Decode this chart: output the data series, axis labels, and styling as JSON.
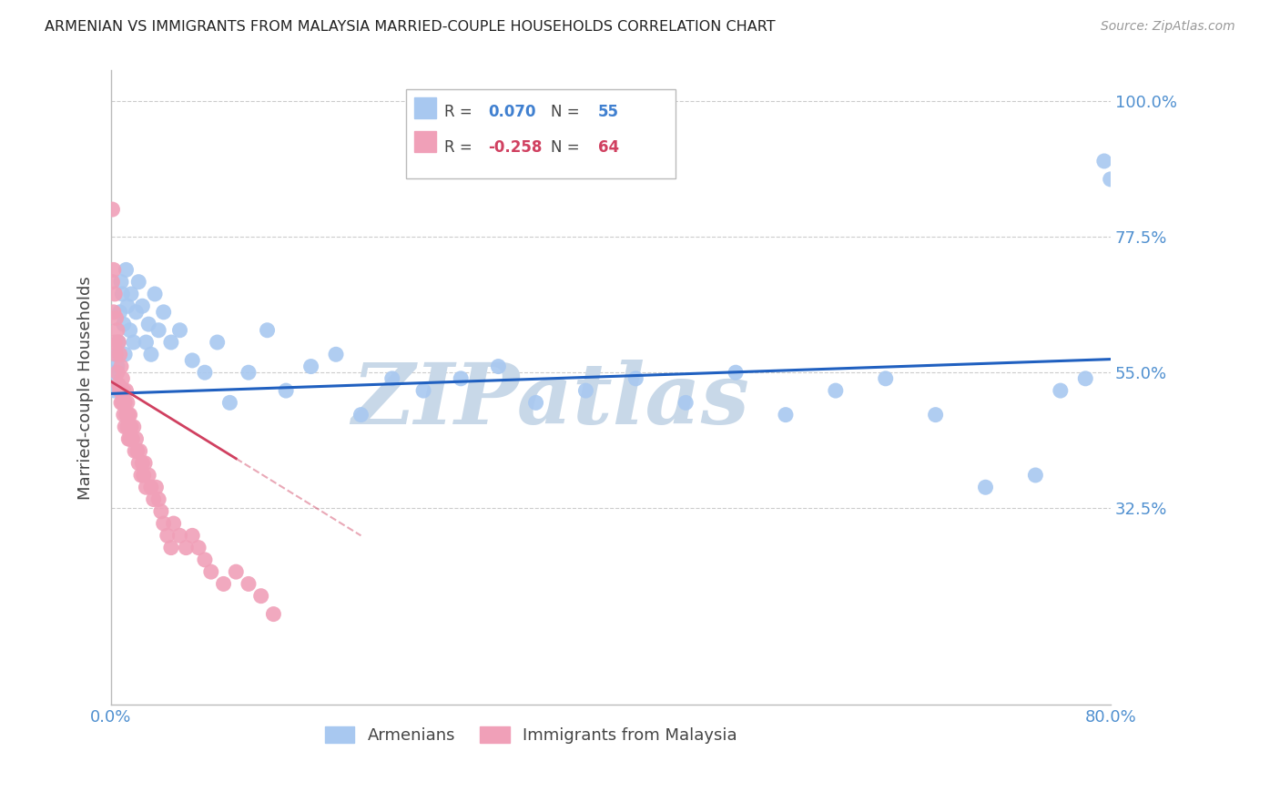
{
  "title": "ARMENIAN VS IMMIGRANTS FROM MALAYSIA MARRIED-COUPLE HOUSEHOLDS CORRELATION CHART",
  "source": "Source: ZipAtlas.com",
  "ylabel": "Married-couple Households",
  "ytick_labels": [
    "100.0%",
    "77.5%",
    "55.0%",
    "32.5%"
  ],
  "ytick_values": [
    1.0,
    0.775,
    0.55,
    0.325
  ],
  "xmin": 0.0,
  "xmax": 0.8,
  "ymin": 0.0,
  "ymax": 1.05,
  "r_armenian": "0.070",
  "n_armenian": "55",
  "r_malaysia": "-0.258",
  "n_malaysia": "64",
  "blue_color": "#a8c8f0",
  "pink_color": "#f0a0b8",
  "trend_blue": "#2060c0",
  "trend_pink": "#d04060",
  "watermark": "ZIPatlas",
  "watermark_color": "#c8d8e8",
  "legend_label_blue": "Armenians",
  "legend_label_pink": "Immigrants from Malaysia",
  "blue_r_color": "#4080d0",
  "pink_r_color": "#d04060",
  "armenian_x": [
    0.002,
    0.003,
    0.004,
    0.005,
    0.006,
    0.007,
    0.008,
    0.009,
    0.01,
    0.011,
    0.012,
    0.013,
    0.015,
    0.016,
    0.018,
    0.02,
    0.022,
    0.025,
    0.028,
    0.03,
    0.032,
    0.035,
    0.038,
    0.042,
    0.048,
    0.055,
    0.065,
    0.075,
    0.085,
    0.095,
    0.11,
    0.125,
    0.14,
    0.16,
    0.18,
    0.2,
    0.225,
    0.25,
    0.28,
    0.31,
    0.34,
    0.38,
    0.42,
    0.46,
    0.5,
    0.54,
    0.58,
    0.62,
    0.66,
    0.7,
    0.74,
    0.76,
    0.78,
    0.795,
    0.8
  ],
  "armenian_y": [
    0.55,
    0.52,
    0.58,
    0.56,
    0.6,
    0.65,
    0.7,
    0.68,
    0.63,
    0.58,
    0.72,
    0.66,
    0.62,
    0.68,
    0.6,
    0.65,
    0.7,
    0.66,
    0.6,
    0.63,
    0.58,
    0.68,
    0.62,
    0.65,
    0.6,
    0.62,
    0.57,
    0.55,
    0.6,
    0.5,
    0.55,
    0.62,
    0.52,
    0.56,
    0.58,
    0.48,
    0.54,
    0.52,
    0.54,
    0.56,
    0.5,
    0.52,
    0.54,
    0.5,
    0.55,
    0.48,
    0.52,
    0.54,
    0.48,
    0.36,
    0.38,
    0.52,
    0.54,
    0.9,
    0.87
  ],
  "malaysia_x": [
    0.001,
    0.001,
    0.002,
    0.002,
    0.003,
    0.003,
    0.004,
    0.004,
    0.005,
    0.005,
    0.006,
    0.006,
    0.007,
    0.007,
    0.008,
    0.008,
    0.009,
    0.009,
    0.01,
    0.01,
    0.011,
    0.011,
    0.012,
    0.012,
    0.013,
    0.013,
    0.014,
    0.014,
    0.015,
    0.015,
    0.016,
    0.017,
    0.018,
    0.019,
    0.02,
    0.021,
    0.022,
    0.023,
    0.024,
    0.025,
    0.026,
    0.027,
    0.028,
    0.03,
    0.032,
    0.034,
    0.036,
    0.038,
    0.04,
    0.042,
    0.045,
    0.048,
    0.05,
    0.055,
    0.06,
    0.065,
    0.07,
    0.075,
    0.08,
    0.09,
    0.1,
    0.11,
    0.12,
    0.13
  ],
  "malaysia_y": [
    0.82,
    0.7,
    0.72,
    0.65,
    0.68,
    0.6,
    0.64,
    0.58,
    0.62,
    0.55,
    0.6,
    0.53,
    0.58,
    0.52,
    0.56,
    0.5,
    0.54,
    0.5,
    0.52,
    0.48,
    0.5,
    0.46,
    0.52,
    0.48,
    0.5,
    0.46,
    0.48,
    0.44,
    0.48,
    0.44,
    0.46,
    0.44,
    0.46,
    0.42,
    0.44,
    0.42,
    0.4,
    0.42,
    0.38,
    0.4,
    0.38,
    0.4,
    0.36,
    0.38,
    0.36,
    0.34,
    0.36,
    0.34,
    0.32,
    0.3,
    0.28,
    0.26,
    0.3,
    0.28,
    0.26,
    0.28,
    0.26,
    0.24,
    0.22,
    0.2,
    0.22,
    0.2,
    0.18,
    0.15
  ],
  "blue_trend_x0": 0.0,
  "blue_trend_y0": 0.515,
  "blue_trend_x1": 0.8,
  "blue_trend_y1": 0.572,
  "pink_trend_x0": 0.0,
  "pink_trend_y0": 0.535,
  "pink_trend_x1_solid": 0.1,
  "pink_trend_x1_dash": 0.2,
  "pink_trend_y1": 0.28
}
